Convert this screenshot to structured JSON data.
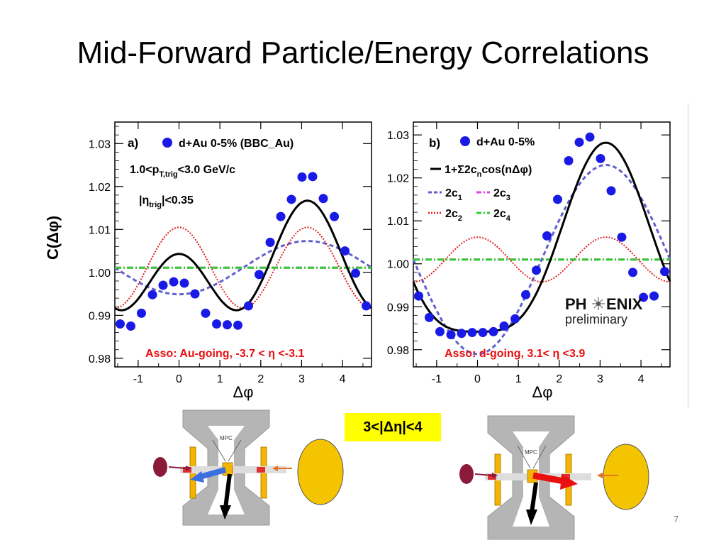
{
  "slide": {
    "title": "Mid-Forward Particle/Energy Correlations",
    "eta_cut": "3<|Δη|<4",
    "page_number": "7"
  },
  "chart_data": [
    {
      "type": "line",
      "panel": "a)",
      "legend_marker": "d+Au 0-5% (BBC_Au)",
      "cut_text_1": "1.0<p",
      "cut_text_1_sub": "T,trig",
      "cut_text_1_rest": "<3.0 GeV/c",
      "cut_text_2": "|η",
      "cut_text_2_sub": "trig",
      "cut_text_2_rest": "|<0.35",
      "annotation": "Asso: Au-going, -3.7 < η <-3.1",
      "xlabel": "Δφ",
      "ylabel": "C(Δφ)",
      "xlim": [
        -1.57,
        4.71
      ],
      "ylim": [
        0.978,
        1.035
      ],
      "xticks": [
        "-1",
        "0",
        "1",
        "2",
        "3",
        "4"
      ],
      "yticks": [
        "0.98",
        "0.99",
        "1.00",
        "1.01",
        "1.02",
        "1.03"
      ],
      "ytick_values": [
        0.98,
        0.99,
        1.0,
        1.01,
        1.02,
        1.03
      ],
      "xtick_values": [
        -1,
        0,
        1,
        2,
        3,
        4
      ],
      "data_points": {
        "x": [
          -1.44,
          -1.18,
          -0.92,
          -0.65,
          -0.39,
          -0.13,
          0.13,
          0.39,
          0.65,
          0.92,
          1.18,
          1.44,
          1.7,
          1.96,
          2.23,
          2.49,
          2.75,
          3.01,
          3.27,
          3.53,
          3.8,
          4.06,
          4.32,
          4.58
        ],
        "y": [
          0.988,
          0.9875,
          0.9905,
          0.9948,
          0.997,
          0.9978,
          0.9975,
          0.995,
          0.9905,
          0.988,
          0.9878,
          0.9877,
          0.9922,
          0.9995,
          1.007,
          1.013,
          1.017,
          1.0222,
          1.0223,
          1.0172,
          1.013,
          1.005,
          0.9998,
          0.9922
        ]
      },
      "fit": {
        "c0": 1.0011,
        "c1": -0.0062,
        "c2": 0.0094,
        "c3": 0.0,
        "c4": 0.0
      },
      "components": [
        {
          "label": "2c1",
          "c1": -0.0062,
          "c2": 0,
          "style": "dashed",
          "color": "#6060cc"
        },
        {
          "label": "2c2",
          "c1": 0,
          "c2": 0.0094,
          "style": "dotted",
          "color": "#e02020"
        },
        {
          "label": "2c3",
          "c1": 0,
          "c2": 0,
          "style": "dashdot",
          "color": "#e040e0"
        },
        {
          "label": "2c4",
          "c1": 0,
          "c2": 0,
          "style": "dashdot",
          "color": "#33cc33"
        }
      ]
    },
    {
      "type": "line",
      "panel": "b)",
      "legend_marker": "d+Au 0-5%",
      "legend_fit": "1+Σ2c",
      "legend_fit_sub": "n",
      "legend_fit_rest": "cos(nΔφ)",
      "legend_components": [
        "2c",
        "2c",
        "2c",
        "2c"
      ],
      "legend_component_subs": [
        "1",
        "2",
        "3",
        "4"
      ],
      "logo_text_1": "PH",
      "logo_text_2": "ENIX",
      "logo_text_3": "preliminary",
      "annotation": "Asso: d-going, 3.1< η <3.9",
      "xlabel": "Δφ",
      "xlim": [
        -1.57,
        4.71
      ],
      "ylim": [
        0.976,
        1.033
      ],
      "xticks": [
        "-1",
        "0",
        "1",
        "2",
        "3",
        "4"
      ],
      "yticks": [
        "0.98",
        "0.99",
        "1.00",
        "1.01",
        "1.02",
        "1.03"
      ],
      "ytick_values": [
        0.98,
        0.99,
        1.0,
        1.01,
        1.02,
        1.03
      ],
      "xtick_values": [
        -1,
        0,
        1,
        2,
        3,
        4
      ],
      "data_points": {
        "x": [
          -1.44,
          -1.18,
          -0.92,
          -0.65,
          -0.39,
          -0.13,
          0.13,
          0.39,
          0.65,
          0.92,
          1.18,
          1.44,
          1.7,
          1.96,
          2.23,
          2.49,
          2.75,
          3.01,
          3.27,
          3.53,
          3.8,
          4.06,
          4.32,
          4.58
        ],
        "y": [
          0.9925,
          0.9875,
          0.9842,
          0.9835,
          0.9838,
          0.984,
          0.984,
          0.9842,
          0.9855,
          0.9872,
          0.9928,
          0.9985,
          1.0065,
          1.015,
          1.024,
          1.0283,
          1.0295,
          1.0245,
          1.017,
          1.0062,
          0.998,
          0.9922,
          0.9925,
          0.9982
        ]
      },
      "fit": {
        "c0": 1.001,
        "c1": -0.022,
        "c2": 0.0052,
        "c3": 0.0,
        "c4": 0.0
      },
      "components": [
        {
          "label": "2c1",
          "c1": -0.022,
          "c2": 0,
          "style": "dashed",
          "color": "#6060cc"
        },
        {
          "label": "2c2",
          "c1": 0,
          "c2": 0.0052,
          "style": "dotted",
          "color": "#e02020"
        },
        {
          "label": "2c3",
          "c1": 0,
          "c2": 0,
          "style": "dashdot",
          "color": "#e040e0"
        },
        {
          "label": "2c4",
          "c1": 0,
          "c2": 0,
          "style": "dashdot",
          "color": "#33cc33"
        }
      ]
    }
  ],
  "detectors": {
    "label": "MPC",
    "colors": {
      "frame": "#b0b0b0",
      "gold": "#f5c400",
      "maroon": "#8b1a3a",
      "blue_arrow": "#3a6fe0",
      "red_arrow": "#e81010",
      "orange": "#e87020"
    }
  }
}
